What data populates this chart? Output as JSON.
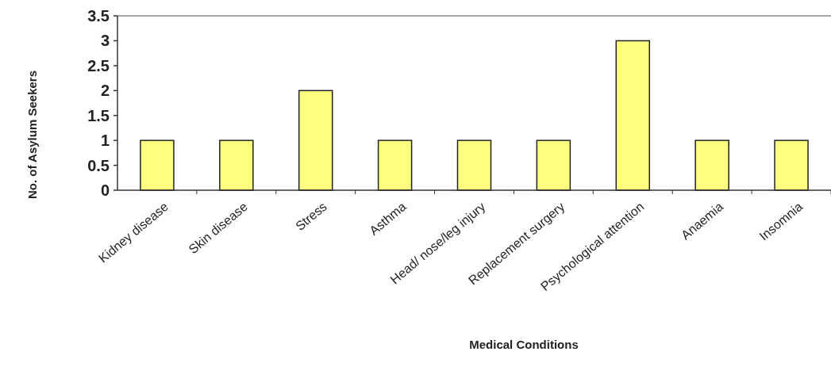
{
  "chart_data": {
    "type": "bar",
    "xlabel": "Medical Conditions",
    "ylabel": "No. of Asylum Seekers",
    "categories": [
      "Kidney disease",
      "Skin disease",
      "Stress",
      "Asthma",
      "Head/ nose/leg injury",
      "Replacement surgery",
      "Psychological attention",
      "Anaemia",
      "Insomnia"
    ],
    "values": [
      1,
      1,
      2,
      1,
      1,
      1,
      3,
      1,
      1
    ],
    "color": "#ffff80",
    "ylim": [
      0,
      3.5
    ],
    "yticks": [
      0,
      0.5,
      1,
      1.5,
      2,
      2.5,
      3,
      3.5
    ]
  }
}
